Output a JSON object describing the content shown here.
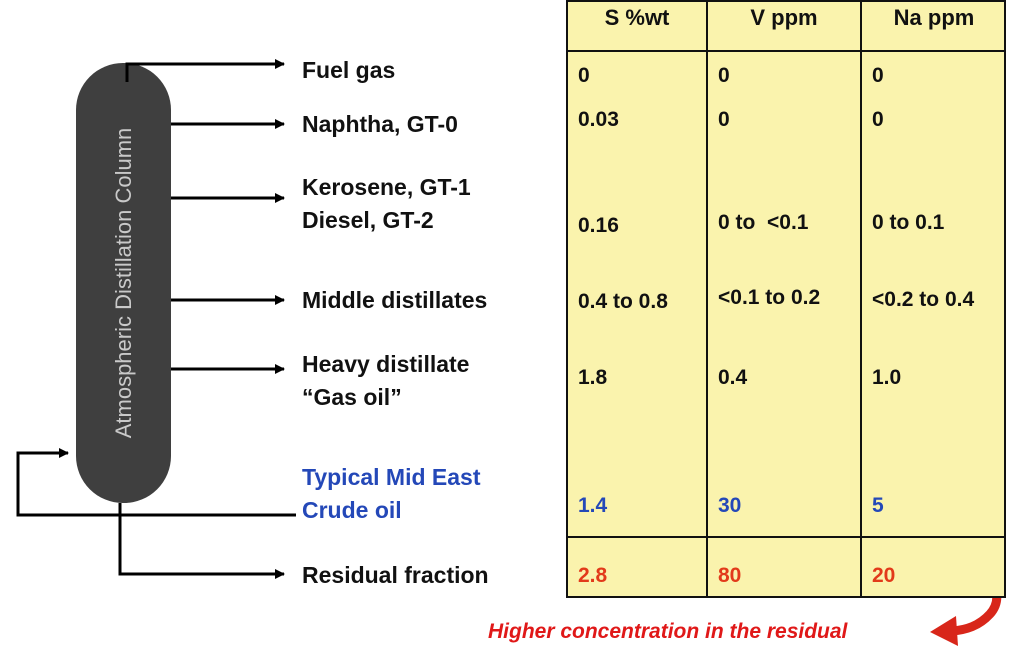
{
  "column": {
    "label": "Atmospheric Distillation Column",
    "fill": "#3f3f3f"
  },
  "streams": [
    {
      "id": "fuel-gas",
      "lines": [
        "Fuel gas"
      ]
    },
    {
      "id": "naphtha",
      "lines": [
        "Naphtha, GT-0"
      ]
    },
    {
      "id": "kerosene-diesel",
      "lines": [
        "Kerosene, GT-1",
        "Diesel, GT-2"
      ]
    },
    {
      "id": "middle-distillates",
      "lines": [
        "Middle distillates"
      ]
    },
    {
      "id": "heavy-distillate",
      "lines": [
        "Heavy distillate",
        "“Gas oil”"
      ]
    },
    {
      "id": "crude-oil",
      "lines": [
        "Typical Mid East",
        "Crude oil"
      ]
    },
    {
      "id": "residual-fraction",
      "lines": [
        "Residual fraction"
      ]
    }
  ],
  "table": {
    "headers": [
      "S %wt",
      "V ppm",
      "Na ppm"
    ],
    "rows": [
      [
        "0",
        "0",
        "0"
      ],
      [
        "0.03",
        "0",
        "0"
      ],
      [
        "0.16",
        "0 to  <0.1",
        "0 to 0.1"
      ],
      [
        "0.4 to 0.8",
        "<0.1 to 0.2",
        "<0.2 to 0.4"
      ],
      [
        "1.8",
        "0.4",
        "1.0"
      ],
      [
        "1.4",
        "30",
        "5"
      ],
      [
        "2.8",
        "80",
        "20"
      ]
    ]
  },
  "note": "Higher concentration in the residual",
  "colors": {
    "crude": "#2448b8",
    "residual": "#e23a1a",
    "table_bg": "#faf3ad",
    "arrow": "#d8261a"
  }
}
